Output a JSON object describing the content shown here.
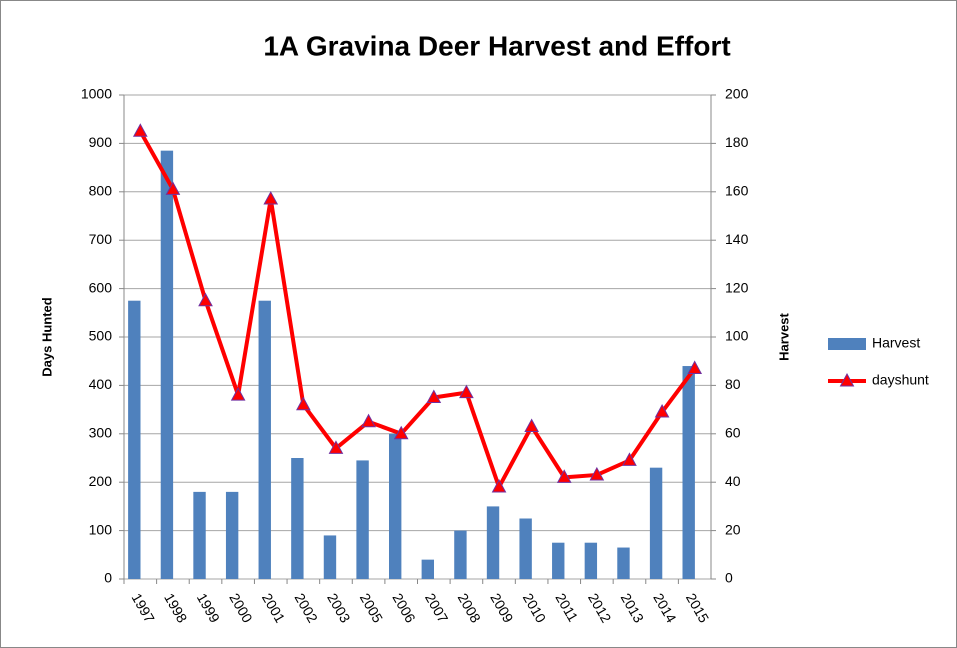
{
  "chart_data": {
    "type": "bar_line",
    "title": "1A Gravina Deer Harvest and Effort",
    "categories": [
      "1997",
      "1998",
      "1999",
      "2000",
      "2001",
      "2002",
      "2003",
      "2005",
      "2006",
      "2007",
      "2008",
      "2009",
      "2010",
      "2011",
      "2012",
      "2013",
      "2014",
      "2015"
    ],
    "series": [
      {
        "name": "Harvest",
        "type": "bar",
        "axis": "y2",
        "color": "#4f81bd",
        "values": [
          115,
          177,
          36,
          36,
          115,
          50,
          18,
          49,
          60,
          8,
          20,
          30,
          25,
          15,
          15,
          13,
          46,
          88
        ]
      },
      {
        "name": "dayshunt",
        "type": "line",
        "axis": "y",
        "color": "#ff0000",
        "values": [
          925,
          805,
          575,
          380,
          785,
          360,
          270,
          325,
          300,
          375,
          385,
          190,
          315,
          210,
          215,
          245,
          345,
          435
        ]
      }
    ],
    "ylabel": "Days Hunted",
    "y2label": "Harvest",
    "ylim": [
      0,
      1000
    ],
    "yticks": [
      0,
      100,
      200,
      300,
      400,
      500,
      600,
      700,
      800,
      900,
      1000
    ],
    "y2lim": [
      0,
      200
    ],
    "y2ticks": [
      0,
      20,
      40,
      60,
      80,
      100,
      120,
      140,
      160,
      180,
      200
    ],
    "grid": true,
    "legend": "right"
  }
}
